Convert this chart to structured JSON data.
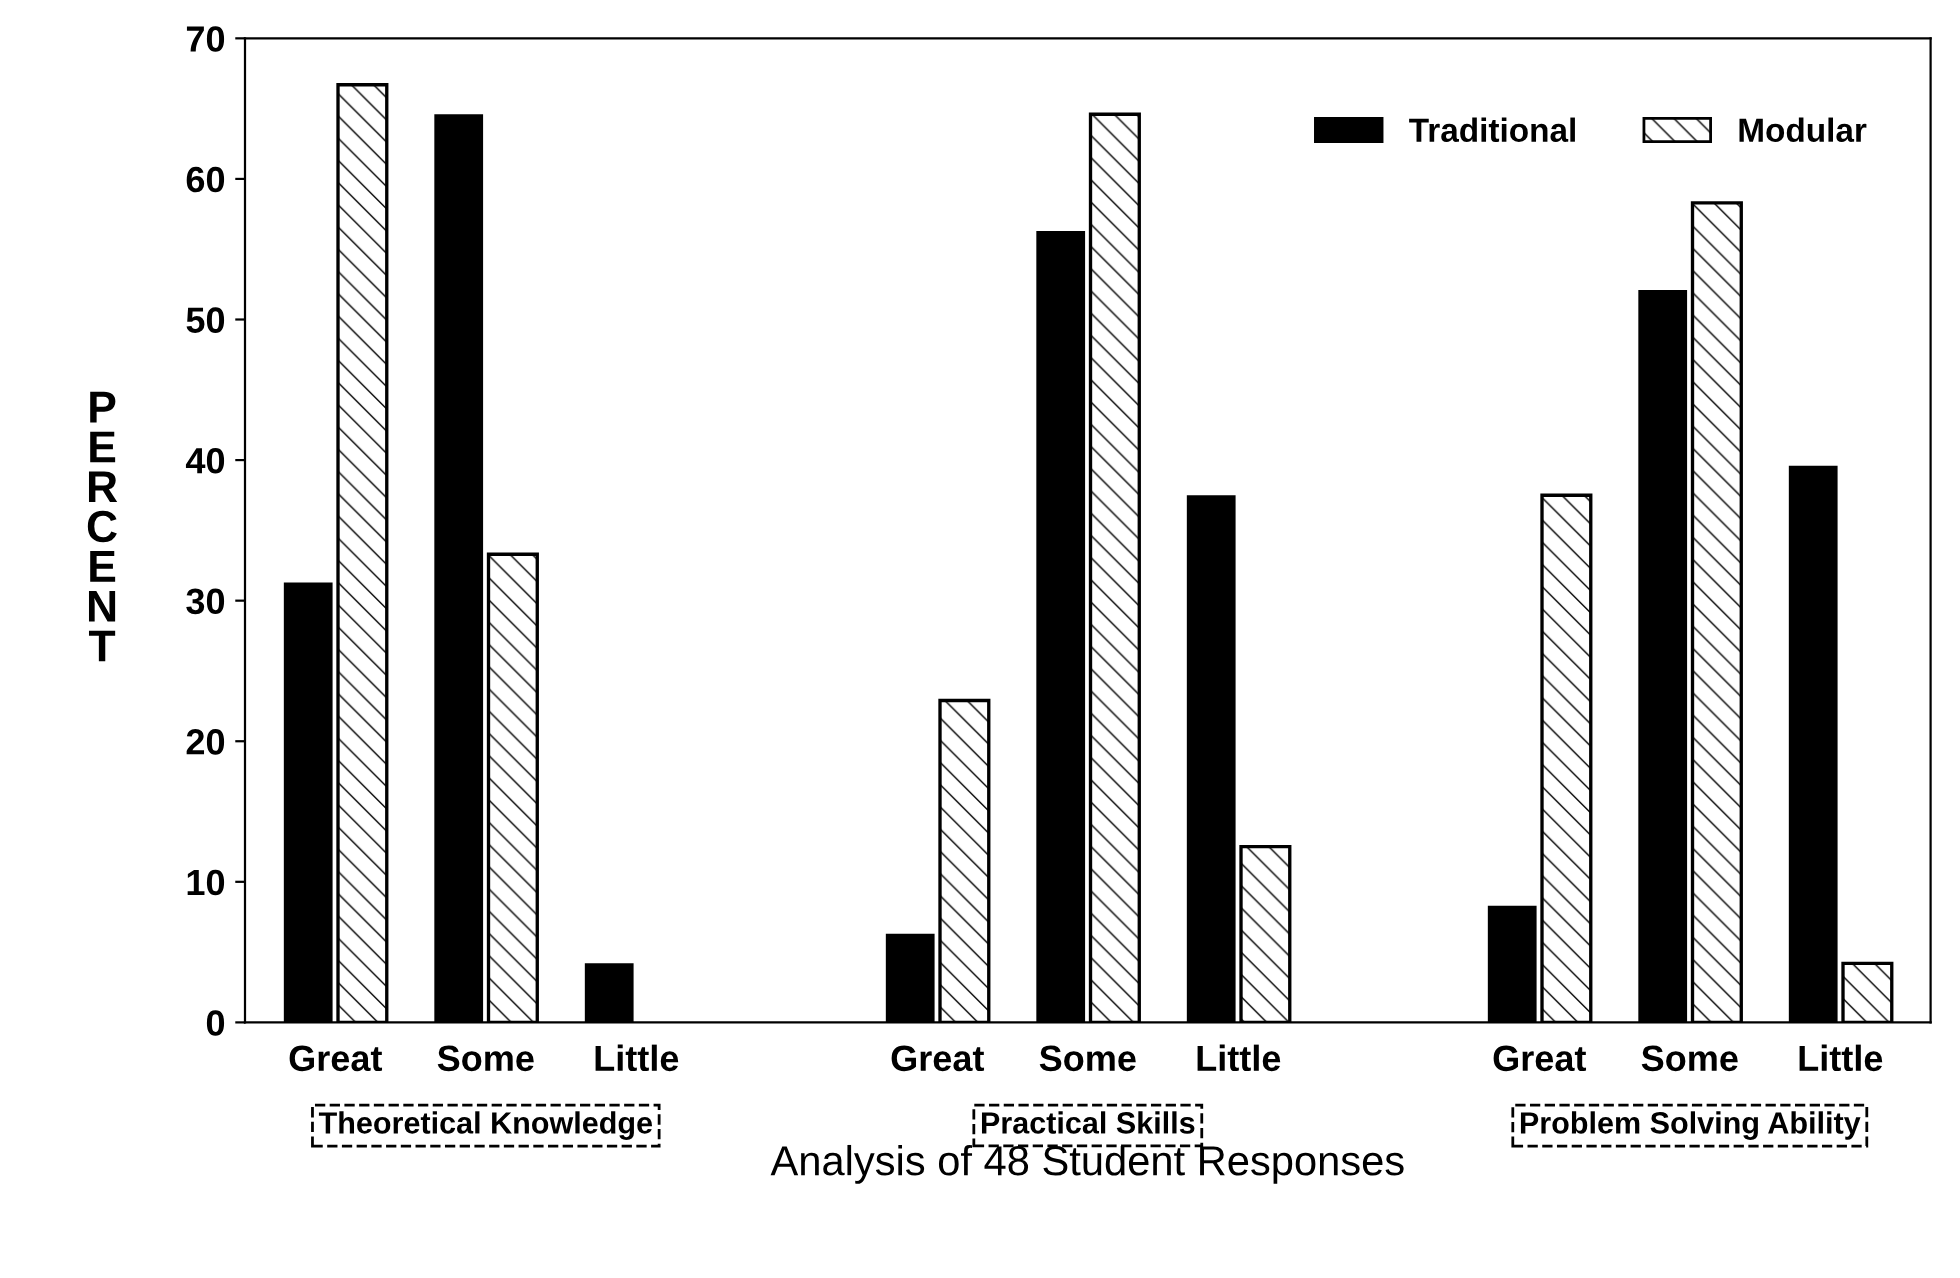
{
  "chart_data": {
    "type": "bar",
    "categories": [
      "Great",
      "Some",
      "Little",
      null,
      "Great",
      "Some",
      "Little",
      null,
      "Great",
      "Some",
      "Little"
    ],
    "series": [
      {
        "name": "Traditional",
        "color": "#000000",
        "values": [
          31.3,
          64.6,
          4.2,
          null,
          6.3,
          56.3,
          37.5,
          null,
          8.3,
          52.1,
          39.6
        ]
      },
      {
        "name": "Modular",
        "color": "#ffffff",
        "values": [
          66.7,
          33.3,
          0,
          null,
          22.9,
          64.6,
          12.5,
          null,
          37.5,
          58.3,
          4.2
        ]
      }
    ],
    "xlabel": "Analysis of 48 Student Responses",
    "ylabel": "PERCENT",
    "annotations": [
      "Theoretical Knowledge",
      "Practical Skills",
      "Problem Solving Ability"
    ],
    "ylim": [
      0,
      70
    ],
    "yticks": [
      0,
      10,
      20,
      30,
      40,
      50,
      60,
      70
    ],
    "grid": false,
    "legend": "top right"
  }
}
